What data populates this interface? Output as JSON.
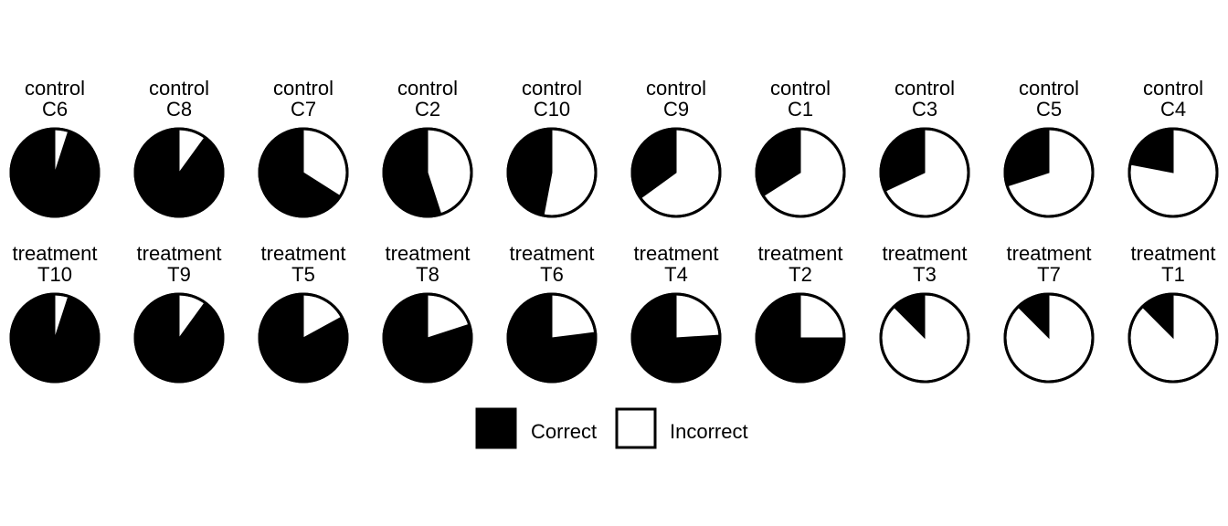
{
  "chart_data": {
    "type": "pie",
    "title": "",
    "legend": {
      "placement": "bottom",
      "entries": [
        {
          "label": "Correct",
          "color": "#000000"
        },
        {
          "label": "Incorrect",
          "color": "#ffffff"
        }
      ]
    },
    "panels": [
      {
        "group": "control",
        "id": "C6",
        "correct": 0.95,
        "incorrect": 0.05
      },
      {
        "group": "control",
        "id": "C8",
        "correct": 0.9,
        "incorrect": 0.1
      },
      {
        "group": "control",
        "id": "C7",
        "correct": 0.66,
        "incorrect": 0.34
      },
      {
        "group": "control",
        "id": "C2",
        "correct": 0.55,
        "incorrect": 0.45
      },
      {
        "group": "control",
        "id": "C10",
        "correct": 0.47,
        "incorrect": 0.53
      },
      {
        "group": "control",
        "id": "C9",
        "correct": 0.35,
        "incorrect": 0.65
      },
      {
        "group": "control",
        "id": "C1",
        "correct": 0.34,
        "incorrect": 0.66
      },
      {
        "group": "control",
        "id": "C3",
        "correct": 0.32,
        "incorrect": 0.68
      },
      {
        "group": "control",
        "id": "C5",
        "correct": 0.3,
        "incorrect": 0.7
      },
      {
        "group": "control",
        "id": "C4",
        "correct": 0.22,
        "incorrect": 0.78
      },
      {
        "group": "treatment",
        "id": "T10",
        "correct": 0.95,
        "incorrect": 0.05
      },
      {
        "group": "treatment",
        "id": "T9",
        "correct": 0.9,
        "incorrect": 0.1
      },
      {
        "group": "treatment",
        "id": "T5",
        "correct": 0.83,
        "incorrect": 0.17
      },
      {
        "group": "treatment",
        "id": "T8",
        "correct": 0.8,
        "incorrect": 0.2
      },
      {
        "group": "treatment",
        "id": "T6",
        "correct": 0.77,
        "incorrect": 0.23
      },
      {
        "group": "treatment",
        "id": "T4",
        "correct": 0.76,
        "incorrect": 0.24
      },
      {
        "group": "treatment",
        "id": "T2",
        "correct": 0.75,
        "incorrect": 0.25
      },
      {
        "group": "treatment",
        "id": "T3",
        "correct": 0.125,
        "incorrect": 0.875
      },
      {
        "group": "treatment",
        "id": "T7",
        "correct": 0.125,
        "incorrect": 0.875
      },
      {
        "group": "treatment",
        "id": "T1",
        "correct": 0.125,
        "incorrect": 0.875
      }
    ]
  }
}
